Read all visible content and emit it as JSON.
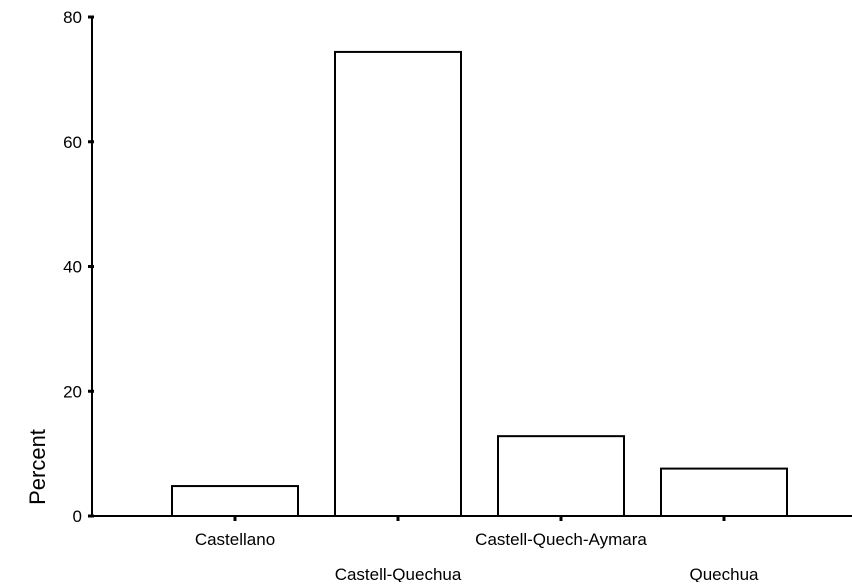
{
  "chart_data": {
    "type": "bar",
    "title": "",
    "xlabel": "",
    "ylabel": "Percent",
    "ylim": [
      0,
      80
    ],
    "yticks": [
      0,
      20,
      40,
      60,
      80
    ],
    "categories": [
      "Castellano",
      "Castell-Quechua",
      "Castell-Quech-Aymara",
      "Quechua"
    ],
    "values": [
      4.8,
      74.4,
      12.8,
      7.6
    ],
    "grid": false,
    "legend": "none",
    "colors": {
      "bar_fill": "#ffffff",
      "bar_stroke": "#000000",
      "axis": "#000000"
    }
  }
}
